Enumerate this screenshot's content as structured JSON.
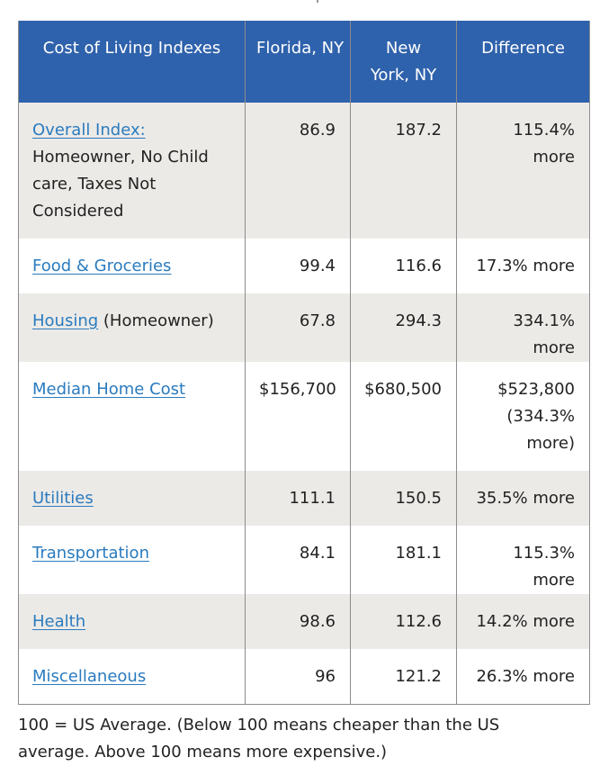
{
  "table": {
    "headers": [
      "Cost of Living Indexes",
      "Florida, NY",
      "New York, NY",
      "Difference"
    ],
    "rows": [
      {
        "label_link": "Overall Index:",
        "label_suffix": " Homeowner, No Child care, Taxes Not Considered",
        "florida": "86.9",
        "newyork": "187.2",
        "difference": "115.4% more"
      },
      {
        "label_link": "Food & Groceries",
        "label_suffix": "",
        "florida": "99.4",
        "newyork": "116.6",
        "difference": "17.3% more"
      },
      {
        "label_link": "Housing",
        "label_suffix": " (Homeowner)",
        "florida": "67.8",
        "newyork": "294.3",
        "difference": "334.1% more"
      },
      {
        "label_link": "Median Home Cost",
        "label_suffix": "",
        "florida": "$156,700",
        "newyork": "$680,500",
        "difference": "$523,800 (334.3% more)"
      },
      {
        "label_link": "Utilities",
        "label_suffix": "",
        "florida": "111.1",
        "newyork": "150.5",
        "difference": "35.5% more"
      },
      {
        "label_link": "Transportation",
        "label_suffix": "",
        "florida": "84.1",
        "newyork": "181.1",
        "difference": "115.3% more"
      },
      {
        "label_link": "Health",
        "label_suffix": "",
        "florida": "98.6",
        "newyork": "112.6",
        "difference": "14.2% more"
      },
      {
        "label_link": "Miscellaneous",
        "label_suffix": "",
        "florida": "96",
        "newyork": "121.2",
        "difference": "26.3% more"
      }
    ]
  },
  "footnote": "100 = US Average. (Below 100 means cheaper than the US average. Above 100 means more expensive.)",
  "colors": {
    "header_bg": "#2f62ac",
    "link": "#2a7bbf",
    "row_alt_bg": "#eceae7",
    "border": "#8c8c8c"
  }
}
